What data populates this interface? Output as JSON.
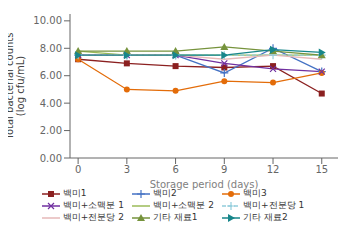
{
  "chart_data": {
    "type": "line",
    "x": [
      0,
      3,
      6,
      9,
      12,
      15
    ],
    "series": [
      {
        "name": "백미1",
        "color": "#8B2020",
        "marker": "square",
        "line_style": "solid",
        "values": [
          7.2,
          6.9,
          6.7,
          6.6,
          6.7,
          4.7
        ]
      },
      {
        "name": "백미2",
        "color": "#4472C4",
        "marker": "plus",
        "line_style": "solid",
        "values": [
          7.5,
          7.5,
          7.5,
          6.2,
          8.0,
          6.3
        ]
      },
      {
        "name": "백미3",
        "color": "#E36C09",
        "marker": "circle",
        "line_style": "solid",
        "values": [
          7.2,
          5.0,
          4.9,
          5.6,
          5.5,
          6.2
        ]
      },
      {
        "name": "백미+소맥분 1",
        "color": "#7030A0",
        "marker": "x",
        "line_style": "solid",
        "values": [
          7.5,
          7.5,
          7.5,
          6.9,
          6.5,
          6.3
        ]
      },
      {
        "name": "백미+소맥분 2",
        "color": "#9BBB59",
        "line_style": "solid",
        "values": [
          7.8,
          7.5,
          7.5,
          7.5,
          7.5,
          7.5
        ]
      },
      {
        "name": "백미+전분당 1",
        "color": "#92CDDC",
        "marker": "plus",
        "line_style": "dashed",
        "values": [
          7.5,
          7.5,
          7.5,
          7.5,
          7.5,
          7.5
        ]
      },
      {
        "name": "백미+전분당 2",
        "color": "#E6B9B8",
        "line_style": "solid",
        "values": [
          7.5,
          7.5,
          7.5,
          7.2,
          7.5,
          7.2
        ]
      },
      {
        "name": "기타 재료1",
        "color": "#76933C",
        "marker": "triangle-up",
        "line_style": "solid",
        "values": [
          7.8,
          7.8,
          7.8,
          8.1,
          7.8,
          7.5
        ]
      },
      {
        "name": "기타 재료2",
        "color": "#17868A",
        "marker": "triangle-right",
        "line_style": "solid",
        "values": [
          7.5,
          7.5,
          7.5,
          7.5,
          7.9,
          7.7
        ]
      }
    ],
    "xlabel": "Storage period (days)",
    "ylabel": "Total bacterial counts\n(log cfu/mL)",
    "xlim": [
      -0.5,
      16
    ],
    "ylim": [
      0,
      10.5
    ],
    "xticks": [
      0,
      3,
      6,
      9,
      12,
      15
    ],
    "yticks": [
      {
        "value": 0,
        "label": "0.00"
      },
      {
        "value": 2,
        "label": "2.00"
      },
      {
        "value": 4,
        "label": "4.00"
      },
      {
        "value": 6,
        "label": "6.00"
      },
      {
        "value": 8,
        "label": "8.00"
      },
      {
        "value": 10,
        "label": "10.00"
      }
    ],
    "grid": false,
    "legend": "bottom"
  }
}
